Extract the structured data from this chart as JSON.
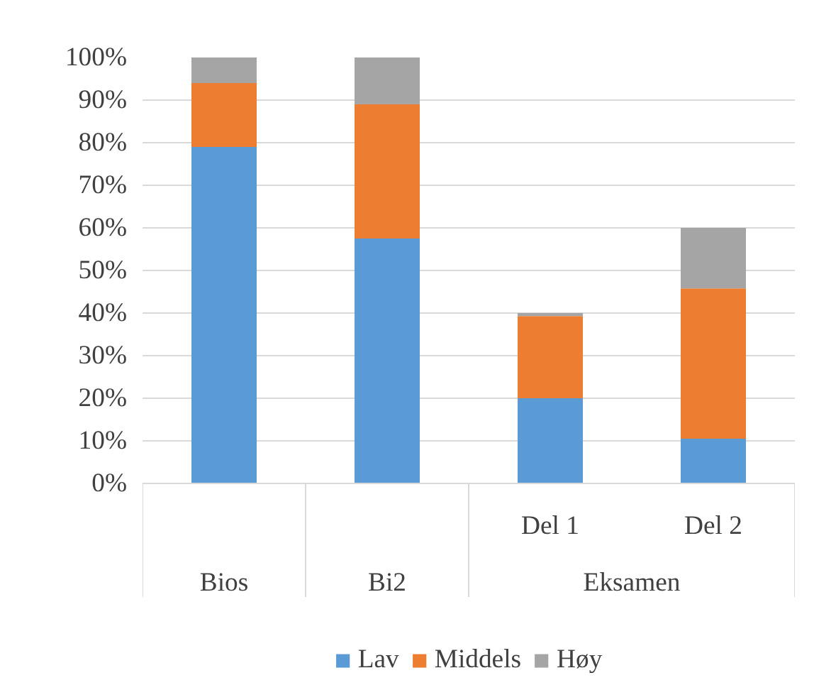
{
  "chart_data": {
    "type": "bar",
    "stacked": true,
    "categories": [
      "Bios",
      "Bi2",
      "Del 1",
      "Del 2"
    ],
    "series": [
      {
        "name": "Lav",
        "color": "#5b9bd5",
        "values": [
          79,
          57.5,
          20,
          10.5
        ]
      },
      {
        "name": "Middels",
        "color": "#ed7d31",
        "values": [
          15,
          31.5,
          19.3,
          35.3
        ]
      },
      {
        "name": "Høy",
        "color": "#a5a5a5",
        "values": [
          6,
          11,
          0.7,
          14.2
        ]
      }
    ],
    "ylim": [
      0,
      100
    ],
    "yticks": [
      {
        "value": 0,
        "label": "0%"
      },
      {
        "value": 10,
        "label": "10%"
      },
      {
        "value": 20,
        "label": "20%"
      },
      {
        "value": 30,
        "label": "30%"
      },
      {
        "value": 40,
        "label": "40%"
      },
      {
        "value": 50,
        "label": "50%"
      },
      {
        "value": 60,
        "label": "60%"
      },
      {
        "value": 70,
        "label": "70%"
      },
      {
        "value": 80,
        "label": "80%"
      },
      {
        "value": 90,
        "label": "90%"
      },
      {
        "value": 100,
        "label": "100%"
      }
    ],
    "grid": "y",
    "legend": "bottom",
    "annotations": [
      "Eksamen"
    ]
  }
}
